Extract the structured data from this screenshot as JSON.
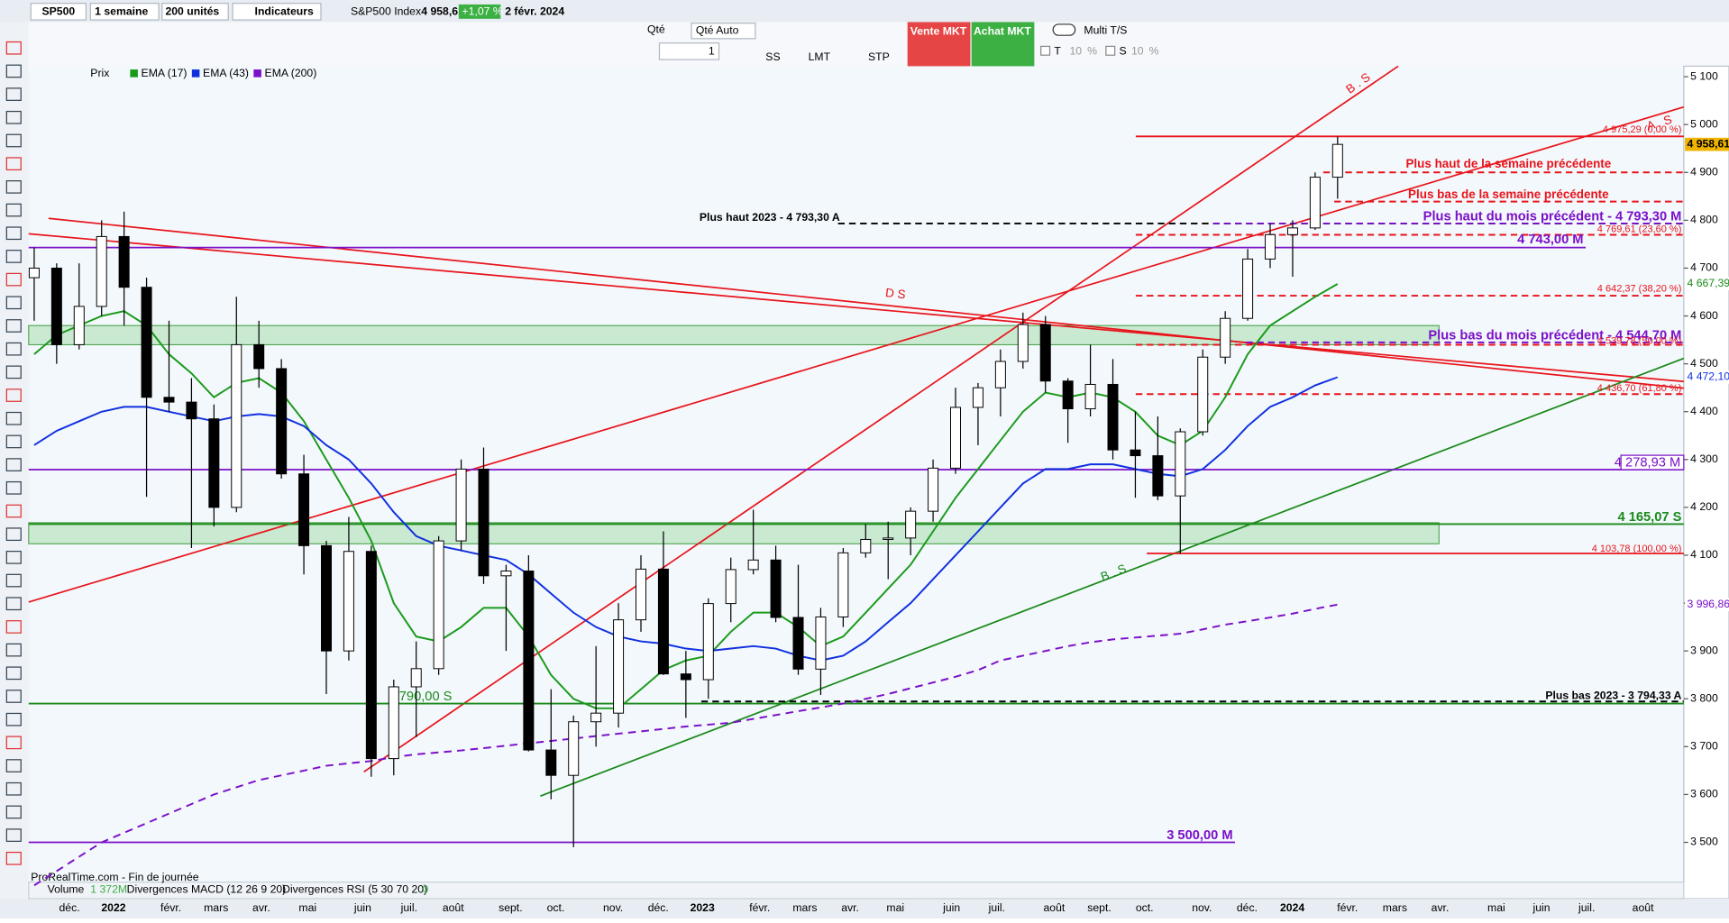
{
  "toolbar": {
    "symbol": "SP500",
    "period": "1 semaine",
    "units": "200 unités",
    "indicators": "Indicateurs",
    "instrument": "S&P500 Index",
    "last": "4 958,61",
    "change": "+1,07 %",
    "date": "2 févr. 2024"
  },
  "order_bar": {
    "qty_label": "Qté",
    "qty_auto": "Qté Auto",
    "qty": "1",
    "ss": "SS",
    "lmt": "LMT",
    "stp": "STP",
    "sell": "Vente MKT",
    "buy": "Achat MKT",
    "multi": "Multi T/S",
    "t": "T",
    "t_val": "10",
    "t_pct": "%",
    "s": "S",
    "s_val": "10",
    "s_pct": "%"
  },
  "chart_data": {
    "type": "candlestick",
    "legend_price": "Prix",
    "candles": [
      [
        4680,
        4743,
        4590,
        4700
      ],
      [
        4700,
        4710,
        4500,
        4540
      ],
      [
        4540,
        4710,
        4530,
        4620
      ],
      [
        4620,
        4800,
        4600,
        4766
      ],
      [
        4766,
        4818,
        4580,
        4660
      ],
      [
        4660,
        4680,
        4222,
        4430
      ],
      [
        4430,
        4590,
        4400,
        4420
      ],
      [
        4420,
        4470,
        4115,
        4385
      ],
      [
        4385,
        4415,
        4160,
        4200
      ],
      [
        4200,
        4640,
        4190,
        4540
      ],
      [
        4540,
        4590,
        4450,
        4490
      ],
      [
        4490,
        4510,
        4260,
        4270
      ],
      [
        4270,
        4310,
        4060,
        4120
      ],
      [
        4120,
        4130,
        3810,
        3900
      ],
      [
        3900,
        4180,
        3880,
        4108
      ],
      [
        4108,
        4120,
        3637,
        3675
      ],
      [
        3675,
        3840,
        3640,
        3825
      ],
      [
        3825,
        3920,
        3720,
        3863
      ],
      [
        3863,
        4140,
        3850,
        4130
      ],
      [
        4130,
        4300,
        4110,
        4280
      ],
      [
        4280,
        4325,
        4040,
        4057
      ],
      [
        4057,
        4080,
        3900,
        4067
      ],
      [
        4067,
        4100,
        3690,
        3693
      ],
      [
        3693,
        3820,
        3590,
        3640
      ],
      [
        3640,
        3765,
        3490,
        3752
      ],
      [
        3752,
        3910,
        3700,
        3770
      ],
      [
        3770,
        4000,
        3740,
        3965
      ],
      [
        3965,
        4100,
        3940,
        4071
      ],
      [
        4071,
        4150,
        3850,
        3852
      ],
      [
        3852,
        3900,
        3760,
        3840
      ],
      [
        3840,
        4010,
        3800,
        3999
      ],
      [
        3999,
        4095,
        3960,
        4070
      ],
      [
        4070,
        4195,
        4060,
        4090
      ],
      [
        4090,
        4120,
        3960,
        3970
      ],
      [
        3970,
        4080,
        3850,
        3862
      ],
      [
        3862,
        3990,
        3808,
        3971
      ],
      [
        3971,
        4115,
        3950,
        4105
      ],
      [
        4105,
        4165,
        4095,
        4133
      ],
      [
        4133,
        4170,
        4050,
        4136
      ],
      [
        4136,
        4200,
        4100,
        4192
      ],
      [
        4192,
        4300,
        4170,
        4282
      ],
      [
        4282,
        4450,
        4270,
        4409
      ],
      [
        4409,
        4460,
        4330,
        4450
      ],
      [
        4450,
        4530,
        4390,
        4505
      ],
      [
        4505,
        4607,
        4490,
        4582
      ],
      [
        4582,
        4600,
        4440,
        4464
      ],
      [
        4464,
        4470,
        4335,
        4406
      ],
      [
        4406,
        4540,
        4390,
        4457
      ],
      [
        4457,
        4510,
        4300,
        4320
      ],
      [
        4320,
        4400,
        4220,
        4308
      ],
      [
        4308,
        4390,
        4215,
        4224
      ],
      [
        4224,
        4365,
        4103,
        4358
      ],
      [
        4358,
        4530,
        4350,
        4514
      ],
      [
        4514,
        4610,
        4500,
        4595
      ],
      [
        4595,
        4740,
        4590,
        4719
      ],
      [
        4719,
        4793,
        4700,
        4770
      ],
      [
        4770,
        4800,
        4682,
        4784
      ],
      [
        4784,
        4900,
        4780,
        4890
      ],
      [
        4890,
        4975,
        4845,
        4958.61
      ]
    ],
    "series": [
      {
        "name": "EMA (17)",
        "color": "#1a9a1a",
        "values": [
          4520,
          4560,
          4580,
          4600,
          4610,
          4580,
          4520,
          4480,
          4430,
          4460,
          4470,
          4440,
          4380,
          4300,
          4220,
          4130,
          4000,
          3930,
          3920,
          3950,
          3990,
          3990,
          3930,
          3850,
          3800,
          3780,
          3780,
          3820,
          3860,
          3880,
          3890,
          3940,
          3980,
          3980,
          3950,
          3910,
          3930,
          3980,
          4030,
          4080,
          4150,
          4220,
          4280,
          4340,
          4400,
          4440,
          4430,
          4440,
          4430,
          4400,
          4350,
          4330,
          4360,
          4430,
          4520,
          4580,
          4610,
          4640,
          4667
        ]
      },
      {
        "name": "EMA (43)",
        "color": "#1030e0",
        "values": [
          4330,
          4360,
          4380,
          4400,
          4410,
          4410,
          4400,
          4390,
          4380,
          4390,
          4395,
          4390,
          4370,
          4330,
          4300,
          4250,
          4190,
          4140,
          4120,
          4110,
          4100,
          4090,
          4060,
          4020,
          3980,
          3950,
          3930,
          3920,
          3915,
          3905,
          3900,
          3905,
          3910,
          3905,
          3890,
          3880,
          3890,
          3920,
          3960,
          4000,
          4050,
          4100,
          4150,
          4200,
          4250,
          4280,
          4280,
          4290,
          4290,
          4280,
          4270,
          4265,
          4280,
          4320,
          4370,
          4410,
          4430,
          4455,
          4472
        ]
      },
      {
        "name": "EMA (200)",
        "color": "#7a10c8",
        "dashed": true,
        "values": [
          3410,
          3440,
          3470,
          3500,
          3520,
          3540,
          3560,
          3580,
          3600,
          3615,
          3630,
          3640,
          3650,
          3660,
          3665,
          3670,
          3678,
          3684,
          3688,
          3692,
          3697,
          3702,
          3707,
          3712,
          3717,
          3722,
          3727,
          3732,
          3737,
          3742,
          3746,
          3750,
          3758,
          3766,
          3774,
          3782,
          3790,
          3800,
          3810,
          3822,
          3834,
          3846,
          3860,
          3880,
          3890,
          3900,
          3910,
          3918,
          3924,
          3928,
          3932,
          3936,
          3945,
          3955,
          3962,
          3970,
          3978,
          3988,
          3997
        ]
      }
    ],
    "ylim": [
      3440,
      5122
    ],
    "yticks": [
      {
        "value": 3500,
        "label": "3 500"
      },
      {
        "value": 3600,
        "label": "3 600"
      },
      {
        "value": 3700,
        "label": "3 700"
      },
      {
        "value": 3800,
        "label": "3 800"
      },
      {
        "value": 3900,
        "label": "3 900"
      },
      {
        "value": 4000,
        "label": "4 000"
      },
      {
        "value": 4100,
        "label": "4 100"
      },
      {
        "value": 4200,
        "label": "4 200"
      },
      {
        "value": 4300,
        "label": "4 300"
      },
      {
        "value": 4400,
        "label": "4 400"
      },
      {
        "value": 4500,
        "label": "4 500"
      },
      {
        "value": 4600,
        "label": "4 600"
      },
      {
        "value": 4700,
        "label": "4 700"
      },
      {
        "value": 4800,
        "label": "4 800"
      },
      {
        "value": 4900,
        "label": "4 900"
      },
      {
        "value": 5000,
        "label": "5 000"
      },
      {
        "value": 5100,
        "label": "5 100"
      }
    ],
    "x_labels": [
      "déc.",
      "2022",
      "févr.",
      "mars",
      "avr.",
      "mai",
      "juin",
      "juil.",
      "août",
      "sept.",
      "oct.",
      "nov.",
      "déc.",
      "2023",
      "févr.",
      "mars",
      "avr.",
      "mai",
      "juin",
      "juil.",
      "août",
      "sept.",
      "oct.",
      "nov.",
      "déc.",
      "2024",
      "févr.",
      "mars",
      "avr.",
      "mai",
      "juin",
      "juil.",
      "août"
    ],
    "levels": [
      {
        "label": "4 975,29 (0,00 %)",
        "value": 4975.29,
        "color": "#e8141b",
        "dashed": false
      },
      {
        "label": "Plus haut de la semaine précédente",
        "value": 4900,
        "color": "#e8141b",
        "dashed": true
      },
      {
        "label": "Plus bas de la semaine précédente",
        "value": 4839,
        "color": "#e8141b",
        "dashed": true
      },
      {
        "label": "Plus haut 2023 - 4 793,30 A",
        "value": 4793.3,
        "color": "#000000",
        "dashed": true
      },
      {
        "label": "Plus haut du mois précédent - 4 793,30 M",
        "value": 4793.3,
        "color": "#7a10c8",
        "dashed": true
      },
      {
        "label": "4 769,61 (23,60 %)",
        "value": 4769.61,
        "color": "#e8141b",
        "dashed": true
      },
      {
        "label": "4 743,00 M",
        "value": 4743,
        "color": "#7a10c8",
        "dashed": false
      },
      {
        "label": "4 642,37 (38,20 %)",
        "value": 4642.37,
        "color": "#e8141b",
        "dashed": true
      },
      {
        "label": "Plus bas du mois précédent - 4 544,70 M",
        "value": 4544.7,
        "color": "#7a10c8",
        "dashed": true
      },
      {
        "label": "4 539,78 (50,00 %)",
        "value": 4539.78,
        "color": "#e8141b",
        "dashed": true
      },
      {
        "label": "4 436,70 (61,80 %)",
        "value": 4436.7,
        "color": "#e8141b",
        "dashed": true
      },
      {
        "label": "4 278,93 M",
        "value": 4278.93,
        "color": "#7a10c8",
        "dashed": false
      },
      {
        "label": "4 165,07 S",
        "value": 4165.07,
        "color": "#1a8a1a",
        "dashed": false
      },
      {
        "label": "4 103,78 (100,00 %)",
        "value": 4103.78,
        "color": "#e8141b",
        "dashed": false
      },
      {
        "label": "3 790,00 S",
        "value": 3790,
        "color": "#1a8a1a",
        "dashed": false
      },
      {
        "label": "Plus bas 2023 - 3 794,33 A",
        "value": 3794.33,
        "color": "#000000",
        "dashed": true
      },
      {
        "label": "3 500,00 M",
        "value": 3500,
        "color": "#7a10c8",
        "dashed": false
      }
    ],
    "zones": [
      {
        "low": 4540,
        "high": 4580
      },
      {
        "low": 4124,
        "high": 4168
      }
    ],
    "price_tags": [
      {
        "label": "4 958,61",
        "value": 4958.61,
        "color": "#f0b400"
      },
      {
        "label": "4 667,39",
        "value": 4667.39,
        "color": "#1a8a1a"
      },
      {
        "label": "4 472,10",
        "value": 4472.1,
        "color": "#1030e0"
      },
      {
        "label": "3 996,86",
        "value": 3996.86,
        "color": "#7a10c8"
      }
    ],
    "drawings": [
      "B . S",
      "A . S",
      "D S",
      "B . S"
    ],
    "footer": {
      "source": "ProRealTime.com - Fin de journée",
      "volume": "Volume",
      "volume_val": "1 372M",
      "macd": "Divergences MACD (12 26 9 20)",
      "rsi": "Divergences RSI (5 30 70 20)",
      "rsi_val": "0"
    }
  }
}
